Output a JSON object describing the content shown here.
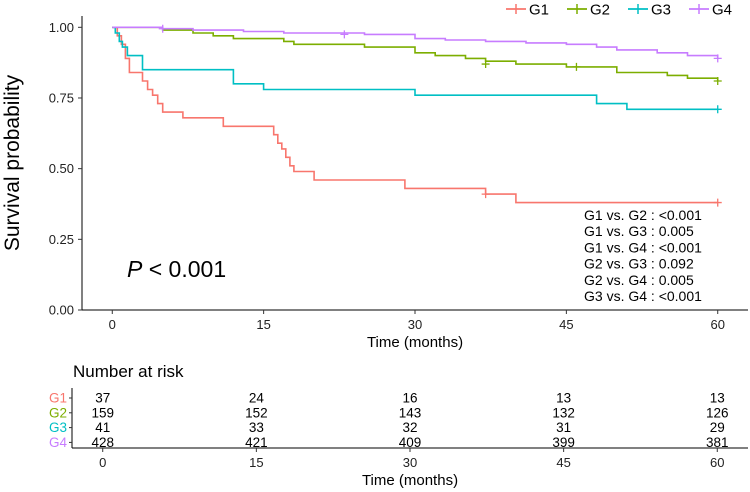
{
  "chart_data": {
    "type": "line",
    "subtype": "kaplan-meier",
    "xlabel": "Time (months)",
    "ylabel": "Survival probability",
    "x_ticks": [
      0,
      15,
      30,
      45,
      60
    ],
    "y_ticks": [
      0.0,
      0.25,
      0.5,
      0.75,
      1.0
    ],
    "y_tick_labels": [
      "0.00",
      "0.25",
      "0.50",
      "0.75",
      "1.00"
    ],
    "xlim": [
      -3,
      63
    ],
    "ylim": [
      0,
      1.04
    ],
    "legend_position": "top",
    "series": [
      {
        "name": "G1",
        "color": "#F8766D",
        "x": [
          0,
          0.5,
          0.9,
          1.3,
          1.7,
          3.0,
          3.5,
          4.0,
          4.5,
          5.0,
          6.0,
          7.0,
          8.0,
          9.0,
          11.0,
          16.0,
          16.4,
          16.8,
          17.2,
          17.6,
          18.0,
          18.5,
          19.0,
          20.0,
          24.0,
          29.0,
          37.0,
          40.0,
          60.0
        ],
        "y": [
          1.0,
          0.97,
          0.94,
          0.89,
          0.84,
          0.81,
          0.78,
          0.76,
          0.73,
          0.7,
          0.7,
          0.68,
          0.68,
          0.68,
          0.65,
          0.62,
          0.59,
          0.57,
          0.54,
          0.51,
          0.49,
          0.49,
          0.49,
          0.46,
          0.46,
          0.43,
          0.41,
          0.38,
          0.38
        ],
        "censor_x": [
          37.0,
          60.0
        ],
        "censor_y": [
          0.41,
          0.38
        ]
      },
      {
        "name": "G2",
        "color": "#7CAE00",
        "x": [
          0,
          5,
          7,
          8,
          10,
          12,
          14,
          17,
          18,
          25,
          28,
          30,
          32,
          35,
          37,
          40,
          45,
          50,
          55,
          57,
          60
        ],
        "y": [
          1.0,
          0.99,
          0.99,
          0.98,
          0.97,
          0.96,
          0.96,
          0.95,
          0.94,
          0.93,
          0.93,
          0.91,
          0.9,
          0.89,
          0.88,
          0.87,
          0.86,
          0.84,
          0.83,
          0.82,
          0.81
        ],
        "censor_x": [
          37,
          46,
          60
        ],
        "censor_y": [
          0.87,
          0.86,
          0.81
        ]
      },
      {
        "name": "G3",
        "color": "#00BFC4",
        "x": [
          0,
          0.3,
          0.7,
          1.0,
          1.5,
          3.0,
          12.0,
          15.0,
          30.0,
          48.0,
          51.0,
          60.0
        ],
        "y": [
          1.0,
          0.98,
          0.95,
          0.93,
          0.9,
          0.85,
          0.8,
          0.78,
          0.76,
          0.73,
          0.71,
          0.71
        ],
        "censor_x": [
          60.0
        ],
        "censor_y": [
          0.71
        ]
      },
      {
        "name": "G4",
        "color": "#C77CFF",
        "x": [
          0,
          2,
          5,
          8,
          10,
          13,
          17,
          20,
          25,
          30,
          33,
          37,
          41,
          45,
          48,
          50,
          54,
          57,
          60
        ],
        "y": [
          1.0,
          1.0,
          0.995,
          0.99,
          0.99,
          0.985,
          0.98,
          0.98,
          0.975,
          0.96,
          0.955,
          0.95,
          0.945,
          0.94,
          0.93,
          0.92,
          0.91,
          0.9,
          0.89
        ],
        "censor_x": [
          5,
          23,
          60
        ],
        "censor_y": [
          0.995,
          0.975,
          0.89
        ]
      }
    ],
    "annotations": {
      "p_symbol": "P",
      "p_value": " < 0.001",
      "pairwise": [
        "G1 vs. G2 : <0.001",
        "G1 vs. G3 : 0.005",
        "G1 vs. G4 : <0.001",
        "G2 vs. G3 : 0.092",
        "G2 vs. G4 : 0.005",
        "G3 vs. G4 : <0.001"
      ]
    },
    "risk_table": {
      "title": "Number at risk",
      "xlabel": "Time (months)",
      "times": [
        0,
        15,
        30,
        45,
        60
      ],
      "rows": [
        {
          "name": "G1",
          "color": "#F8766D",
          "values": [
            "37",
            "24",
            "16",
            "13",
            "13"
          ]
        },
        {
          "name": "G2",
          "color": "#7CAE00",
          "values": [
            "159",
            "152",
            "143",
            "132",
            "126"
          ]
        },
        {
          "name": "G3",
          "color": "#00BFC4",
          "values": [
            "41",
            "33",
            "32",
            "31",
            "29"
          ]
        },
        {
          "name": "G4",
          "color": "#C77CFF",
          "values": [
            "428",
            "421",
            "409",
            "399",
            "381"
          ]
        }
      ]
    }
  }
}
